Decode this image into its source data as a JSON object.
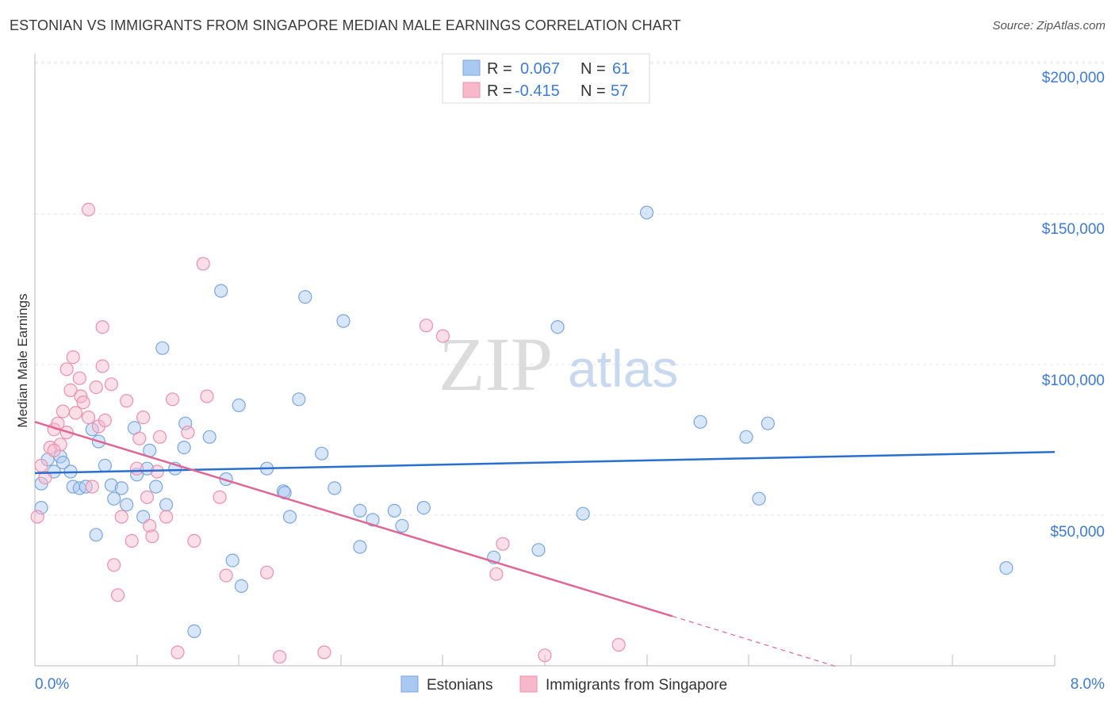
{
  "header": {
    "title": "ESTONIAN VS IMMIGRANTS FROM SINGAPORE MEDIAN MALE EARNINGS CORRELATION CHART",
    "source": "Source: ZipAtlas.com"
  },
  "watermark": {
    "zip": "ZIP",
    "atlas": "atlas"
  },
  "legend": {
    "rows": [
      {
        "r_label": "R =",
        "r_value": "0.067",
        "n_label": "N =",
        "n_value": "61",
        "color": "#a9c8f2"
      },
      {
        "r_label": "R =",
        "r_value": "-0.415",
        "n_label": "N =",
        "n_value": "57",
        "color": "#f7b8cb"
      }
    ]
  },
  "bottom_legend": {
    "series1": "Estonians",
    "series2": "Immigrants from Singapore"
  },
  "chart_data": {
    "type": "scatter",
    "title": "ESTONIAN VS IMMIGRANTS FROM SINGAPORE MEDIAN MALE EARNINGS CORRELATION CHART",
    "xlabel": "",
    "ylabel": "Median Male Earnings",
    "xlim": [
      0,
      8
    ],
    "ylim": [
      0,
      210000
    ],
    "x_tick_labels": [
      "0.0%",
      "8.0%"
    ],
    "y_ticks": [
      50000,
      100000,
      150000,
      200000
    ],
    "y_tick_labels": [
      "$50,000",
      "$100,000",
      "$150,000",
      "$200,000"
    ],
    "grid": true,
    "legend_position": "top-center",
    "series": [
      {
        "name": "Estonians",
        "color": "#a9c8f2",
        "stroke": "#7aa6e0",
        "trend_color": "#2a6fd0",
        "trend": {
          "x0": 0,
          "y0": 64500,
          "x1": 8,
          "y1": 71500
        },
        "points": [
          [
            0.05,
            61000
          ],
          [
            0.1,
            69000
          ],
          [
            0.15,
            65000
          ],
          [
            0.2,
            70000
          ],
          [
            0.22,
            68000
          ],
          [
            0.28,
            65000
          ],
          [
            0.3,
            60000
          ],
          [
            0.35,
            59500
          ],
          [
            0.4,
            60000
          ],
          [
            0.45,
            79000
          ],
          [
            0.5,
            75000
          ],
          [
            0.55,
            67000
          ],
          [
            0.6,
            60500
          ],
          [
            0.62,
            56000
          ],
          [
            0.68,
            59500
          ],
          [
            0.72,
            54000
          ],
          [
            0.78,
            79500
          ],
          [
            0.8,
            64000
          ],
          [
            0.85,
            50000
          ],
          [
            0.88,
            66000
          ],
          [
            0.9,
            72000
          ],
          [
            0.95,
            60000
          ],
          [
            1.0,
            106000
          ],
          [
            1.03,
            54000
          ],
          [
            1.1,
            66000
          ],
          [
            1.17,
            73000
          ],
          [
            1.18,
            81000
          ],
          [
            1.37,
            76500
          ],
          [
            1.46,
            125000
          ],
          [
            1.5,
            62500
          ],
          [
            1.55,
            35500
          ],
          [
            1.62,
            27000
          ],
          [
            1.6,
            87000
          ],
          [
            1.82,
            66000
          ],
          [
            1.95,
            58500
          ],
          [
            1.96,
            58000
          ],
          [
            2.0,
            50000
          ],
          [
            2.07,
            89000
          ],
          [
            2.12,
            123000
          ],
          [
            2.25,
            71000
          ],
          [
            2.35,
            59500
          ],
          [
            2.42,
            115000
          ],
          [
            2.55,
            52000
          ],
          [
            2.55,
            40000
          ],
          [
            2.65,
            49000
          ],
          [
            2.82,
            52000
          ],
          [
            2.88,
            47000
          ],
          [
            3.05,
            53000
          ],
          [
            3.6,
            36500
          ],
          [
            3.95,
            39000
          ],
          [
            4.1,
            113000
          ],
          [
            4.3,
            51000
          ],
          [
            1.25,
            12000
          ],
          [
            0.48,
            44000
          ],
          [
            4.8,
            151000
          ],
          [
            5.22,
            81500
          ],
          [
            5.58,
            76500
          ],
          [
            5.68,
            56000
          ],
          [
            5.75,
            81000
          ],
          [
            7.62,
            33000
          ],
          [
            0.05,
            53000
          ]
        ]
      },
      {
        "name": "Immigrants from Singapore",
        "color": "#f7b8cb",
        "stroke": "#ee8fab",
        "trend_color": "#e06694",
        "trend": {
          "x0": 0,
          "y0": 81500,
          "x1": 5.0,
          "y1": 17000
        },
        "trend_dashed": {
          "x0": 5.0,
          "y0": 17000,
          "x1": 8,
          "y1": -22000
        },
        "points": [
          [
            0.02,
            50000
          ],
          [
            0.05,
            67000
          ],
          [
            0.08,
            63000
          ],
          [
            0.12,
            73000
          ],
          [
            0.15,
            79000
          ],
          [
            0.18,
            81000
          ],
          [
            0.2,
            74000
          ],
          [
            0.22,
            85000
          ],
          [
            0.25,
            78000
          ],
          [
            0.25,
            99000
          ],
          [
            0.28,
            92000
          ],
          [
            0.3,
            103000
          ],
          [
            0.32,
            84500
          ],
          [
            0.35,
            96000
          ],
          [
            0.36,
            90000
          ],
          [
            0.38,
            88000
          ],
          [
            0.42,
            83000
          ],
          [
            0.45,
            60000
          ],
          [
            0.48,
            93000
          ],
          [
            0.5,
            80000
          ],
          [
            0.53,
            100000
          ],
          [
            0.53,
            113000
          ],
          [
            0.55,
            82000
          ],
          [
            0.6,
            94000
          ],
          [
            0.62,
            34000
          ],
          [
            0.65,
            24000
          ],
          [
            0.68,
            50000
          ],
          [
            0.72,
            88500
          ],
          [
            0.76,
            42000
          ],
          [
            0.8,
            66000
          ],
          [
            0.82,
            76000
          ],
          [
            0.85,
            83000
          ],
          [
            0.88,
            56500
          ],
          [
            0.9,
            47000
          ],
          [
            0.92,
            43500
          ],
          [
            0.96,
            65000
          ],
          [
            0.98,
            76500
          ],
          [
            1.03,
            50000
          ],
          [
            1.08,
            89000
          ],
          [
            1.12,
            5000
          ],
          [
            1.2,
            78000
          ],
          [
            1.25,
            42000
          ],
          [
            1.32,
            134000
          ],
          [
            1.35,
            90000
          ],
          [
            1.45,
            56500
          ],
          [
            1.5,
            30500
          ],
          [
            1.82,
            31500
          ],
          [
            1.92,
            3500
          ],
          [
            2.27,
            5000
          ],
          [
            3.07,
            113500
          ],
          [
            3.2,
            110000
          ],
          [
            3.62,
            31000
          ],
          [
            3.67,
            41000
          ],
          [
            4.0,
            4000
          ],
          [
            4.58,
            7500
          ],
          [
            0.42,
            152000
          ],
          [
            0.15,
            72000
          ]
        ]
      }
    ]
  },
  "axes": {
    "ylabel": "Median Male Earnings",
    "x_left": "0.0%",
    "x_right": "8.0%",
    "y_200": "$200,000",
    "y_150": "$150,000",
    "y_100": "$100,000",
    "y_50": "$50,000"
  }
}
